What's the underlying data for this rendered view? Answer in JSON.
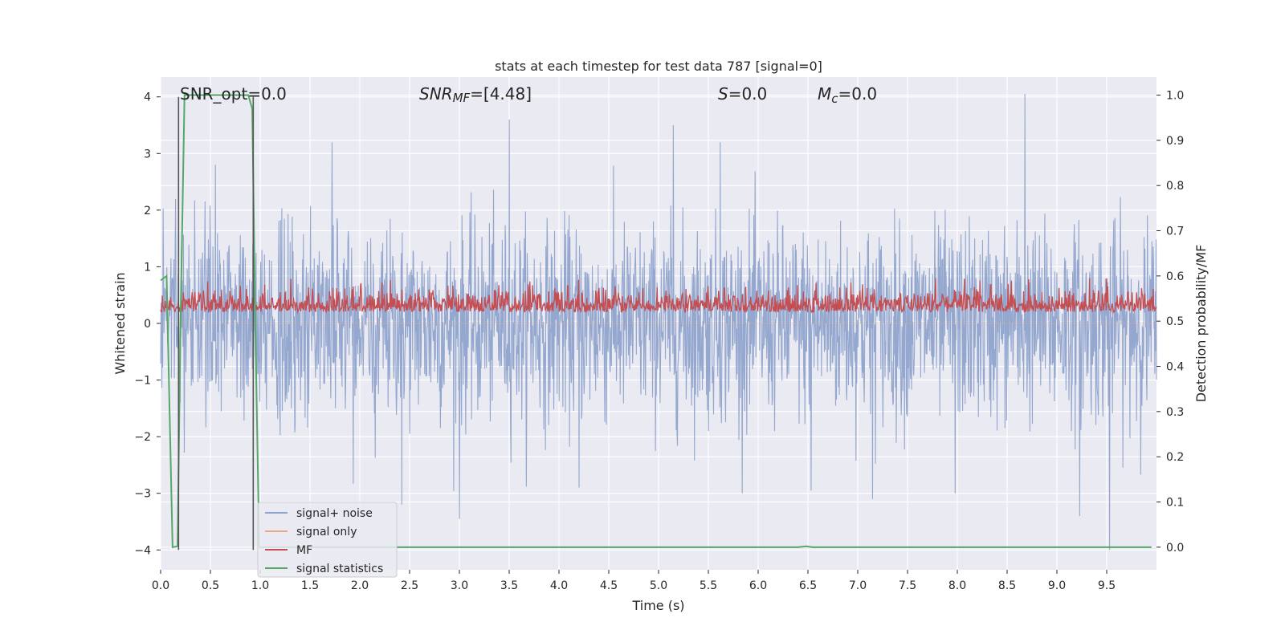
{
  "chart_data": {
    "type": "line",
    "title": "stats at each timestep for test data 787 [signal=0]",
    "xlabel": "Time (s)",
    "ylabel_left": "Whitened strain",
    "ylabel_right": "Detection probability/MF",
    "xlim": [
      0.0,
      10.0
    ],
    "ylim_left": [
      -4.35,
      4.35
    ],
    "ylim_right": [
      -0.05,
      1.04
    ],
    "xticks": [
      0.0,
      0.5,
      1.0,
      1.5,
      2.0,
      2.5,
      3.0,
      3.5,
      4.0,
      4.5,
      5.0,
      5.5,
      6.0,
      6.5,
      7.0,
      7.5,
      8.0,
      8.5,
      9.0,
      9.5
    ],
    "xtick_labels": [
      "0.0",
      "0.5",
      "1.0",
      "1.5",
      "2.0",
      "2.5",
      "3.0",
      "3.5",
      "4.0",
      "4.5",
      "5.0",
      "5.5",
      "6.0",
      "6.5",
      "7.0",
      "7.5",
      "8.0",
      "8.5",
      "9.0",
      "9.5"
    ],
    "yticks_left": [
      -4,
      -3,
      -2,
      -1,
      0,
      1,
      2,
      3,
      4
    ],
    "ytick_labels_left": [
      "−4",
      "−3",
      "−2",
      "−1",
      "0",
      "1",
      "2",
      "3",
      "4"
    ],
    "yticks_right": [
      0.0,
      0.1,
      0.2,
      0.3,
      0.4,
      0.5,
      0.6,
      0.7,
      0.8,
      0.9,
      1.0
    ],
    "ytick_labels_right": [
      "0.0",
      "0.1",
      "0.2",
      "0.3",
      "0.4",
      "0.5",
      "0.6",
      "0.7",
      "0.8",
      "0.9",
      "1.0"
    ],
    "grid": true,
    "legend_position": "lower-left",
    "annotations": {
      "snr_opt": "SNR_opt=0.0",
      "snr_mf_sym": "SNR",
      "snr_mf_sub": "MF",
      "snr_mf_val": "=[4.48]",
      "s_sym": "S",
      "s_val": "=0.0",
      "mc_sym": "M",
      "mc_sub": "c",
      "mc_val": "=0.0"
    },
    "series": [
      {
        "name": "signal+ noise",
        "axis": "left",
        "color": "#8fa3cc",
        "description_level": "noise approx ±1.5 std, peaks to ±4",
        "peaks": [
          [
            0.15,
            2.2
          ],
          [
            0.55,
            2.8
          ],
          [
            1.72,
            3.2
          ],
          [
            2.42,
            -3.2
          ],
          [
            3.0,
            -3.45
          ],
          [
            3.5,
            3.6
          ],
          [
            4.2,
            -2.9
          ],
          [
            5.15,
            3.5
          ],
          [
            5.62,
            3.2
          ],
          [
            6.53,
            -2.95
          ],
          [
            7.15,
            -3.1
          ],
          [
            7.98,
            -3.0
          ],
          [
            8.68,
            4.05
          ],
          [
            9.23,
            -3.4
          ],
          [
            9.53,
            -4.0
          ]
        ]
      },
      {
        "name": "signal only",
        "axis": "left",
        "color": "#e8a98a",
        "values_constant": 0.0
      },
      {
        "name": "MF",
        "axis": "right",
        "color": "#c44e52",
        "level_mean": 0.52,
        "level_range": [
          0.5,
          0.6
        ]
      },
      {
        "name": "signal statistics",
        "axis": "right",
        "color": "#55a868",
        "x": [
          0.0,
          0.06,
          0.12,
          0.17,
          0.2,
          0.24,
          0.3,
          0.5,
          0.7,
          0.88,
          0.92,
          0.95,
          0.99,
          1.04,
          1.5,
          3.0,
          5.0,
          6.4,
          6.48,
          6.55,
          7.0,
          8.0,
          9.0,
          9.95
        ],
        "y": [
          0.59,
          0.6,
          0.0,
          0.002,
          0.5,
          1.0,
          1.0,
          1.0,
          1.0,
          1.0,
          0.97,
          0.5,
          0.0,
          0.0,
          0.0,
          0.0,
          0.0,
          0.0,
          0.002,
          0.0,
          0.0,
          0.0,
          0.0,
          0.0
        ]
      }
    ],
    "vertical_markers": [
      0.18,
      0.93
    ]
  }
}
